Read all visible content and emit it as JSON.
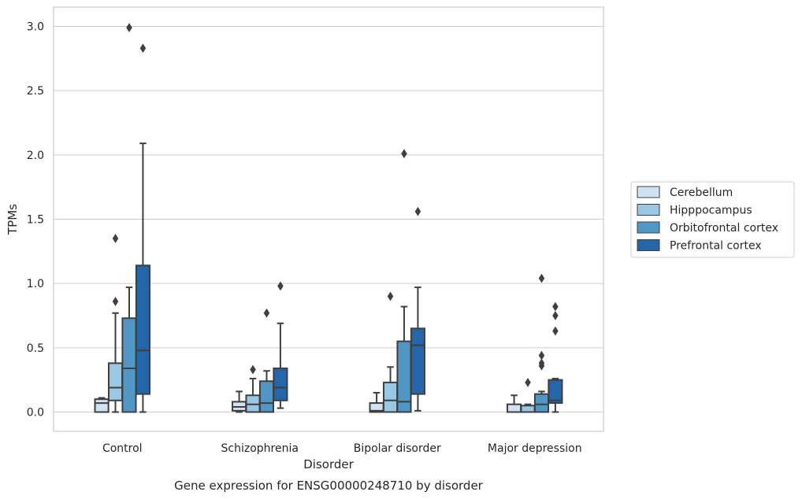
{
  "chart_data": {
    "type": "box",
    "title": "Gene expression for ENSG00000248710 by disorder",
    "xlabel": "Disorder",
    "ylabel": "TPMs",
    "ylim": [
      -0.15,
      3.15
    ],
    "yticks": [
      "0.0",
      "0.5",
      "1.0",
      "1.5",
      "2.0",
      "2.5",
      "3.0"
    ],
    "grid": true,
    "legend_position": "right",
    "categories": [
      "Control",
      "Schizophrenia",
      "Bipolar disorder",
      "Major depression"
    ],
    "series": [
      {
        "name": "Cerebellum",
        "color": "#d1e2f2",
        "boxes": [
          {
            "whislo": 0.0,
            "q1": 0.0,
            "med": 0.07,
            "q3": 0.1,
            "whishi": 0.11,
            "fliers": []
          },
          {
            "whislo": 0.0,
            "q1": 0.01,
            "med": 0.04,
            "q3": 0.08,
            "whishi": 0.16,
            "fliers": []
          },
          {
            "whislo": 0.0,
            "q1": 0.0,
            "med": 0.01,
            "q3": 0.07,
            "whishi": 0.15,
            "fliers": []
          },
          {
            "whislo": 0.0,
            "q1": 0.0,
            "med": 0.0,
            "q3": 0.06,
            "whishi": 0.13,
            "fliers": []
          }
        ]
      },
      {
        "name": "Hipppocampus",
        "color": "#9ac7e1",
        "boxes": [
          {
            "whislo": 0.0,
            "q1": 0.09,
            "med": 0.19,
            "q3": 0.38,
            "whishi": 0.77,
            "fliers": [
              0.86,
              1.35
            ]
          },
          {
            "whislo": 0.0,
            "q1": 0.0,
            "med": 0.06,
            "q3": 0.13,
            "whishi": 0.26,
            "fliers": [
              0.33
            ]
          },
          {
            "whislo": 0.0,
            "q1": 0.0,
            "med": 0.09,
            "q3": 0.23,
            "whishi": 0.35,
            "fliers": [
              0.9
            ]
          },
          {
            "whislo": 0.0,
            "q1": 0.0,
            "med": 0.0,
            "q3": 0.05,
            "whishi": 0.06,
            "fliers": [
              0.23
            ]
          }
        ]
      },
      {
        "name": "Orbitofrontal cortex",
        "color": "#5097c5",
        "boxes": [
          {
            "whislo": 0.0,
            "q1": 0.0,
            "med": 0.34,
            "q3": 0.73,
            "whishi": 0.97,
            "fliers": [
              2.99
            ]
          },
          {
            "whislo": 0.0,
            "q1": 0.0,
            "med": 0.07,
            "q3": 0.24,
            "whishi": 0.32,
            "fliers": [
              0.77
            ]
          },
          {
            "whislo": 0.0,
            "q1": 0.0,
            "med": 0.08,
            "q3": 0.55,
            "whishi": 0.82,
            "fliers": [
              2.01
            ]
          },
          {
            "whislo": 0.0,
            "q1": 0.0,
            "med": 0.06,
            "q3": 0.14,
            "whishi": 0.16,
            "fliers": [
              0.36,
              0.38,
              0.44,
              1.04
            ]
          }
        ]
      },
      {
        "name": "Prefrontal cortex",
        "color": "#2466a8",
        "boxes": [
          {
            "whislo": 0.0,
            "q1": 0.14,
            "med": 0.48,
            "q3": 1.14,
            "whishi": 2.09,
            "fliers": [
              2.83
            ]
          },
          {
            "whislo": 0.03,
            "q1": 0.09,
            "med": 0.19,
            "q3": 0.34,
            "whishi": 0.69,
            "fliers": [
              0.98
            ]
          },
          {
            "whislo": 0.01,
            "q1": 0.14,
            "med": 0.52,
            "q3": 0.65,
            "whishi": 0.97,
            "fliers": [
              1.56
            ]
          },
          {
            "whislo": 0.0,
            "q1": 0.07,
            "med": 0.09,
            "q3": 0.25,
            "whishi": 0.26,
            "fliers": [
              0.63,
              0.75,
              0.82
            ]
          }
        ]
      }
    ]
  }
}
